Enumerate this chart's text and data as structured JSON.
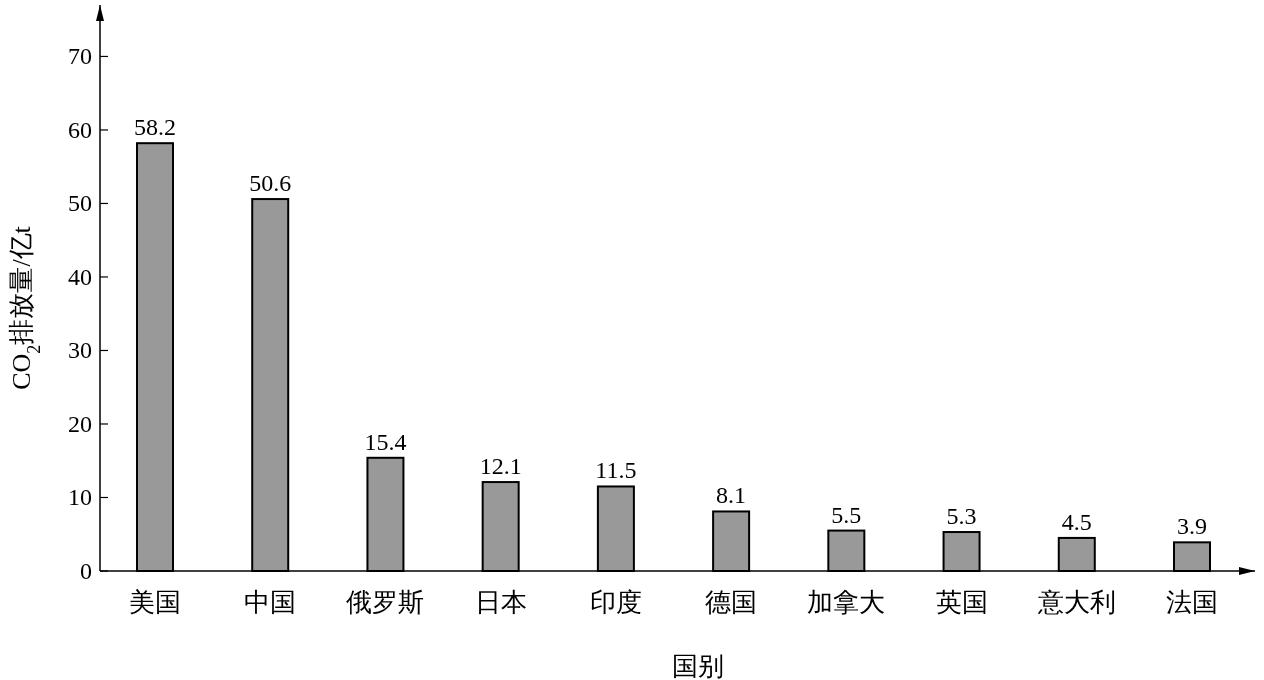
{
  "chart_data": {
    "type": "bar",
    "xlabel": "国别",
    "ylabel": "CO$_{2}$排放量/亿t",
    "categories": [
      "美国",
      "中国",
      "俄罗斯",
      "日本",
      "印度",
      "德国",
      "加拿大",
      "英国",
      "意大利",
      "法国"
    ],
    "values": [
      58.2,
      50.6,
      15.4,
      12.1,
      11.5,
      8.1,
      5.5,
      5.3,
      4.5,
      3.9
    ],
    "color": "#999999",
    "ylim": [
      0,
      77
    ],
    "yticks": [
      0,
      10,
      20,
      30,
      40,
      50,
      60,
      70
    ],
    "data_labels": true
  }
}
